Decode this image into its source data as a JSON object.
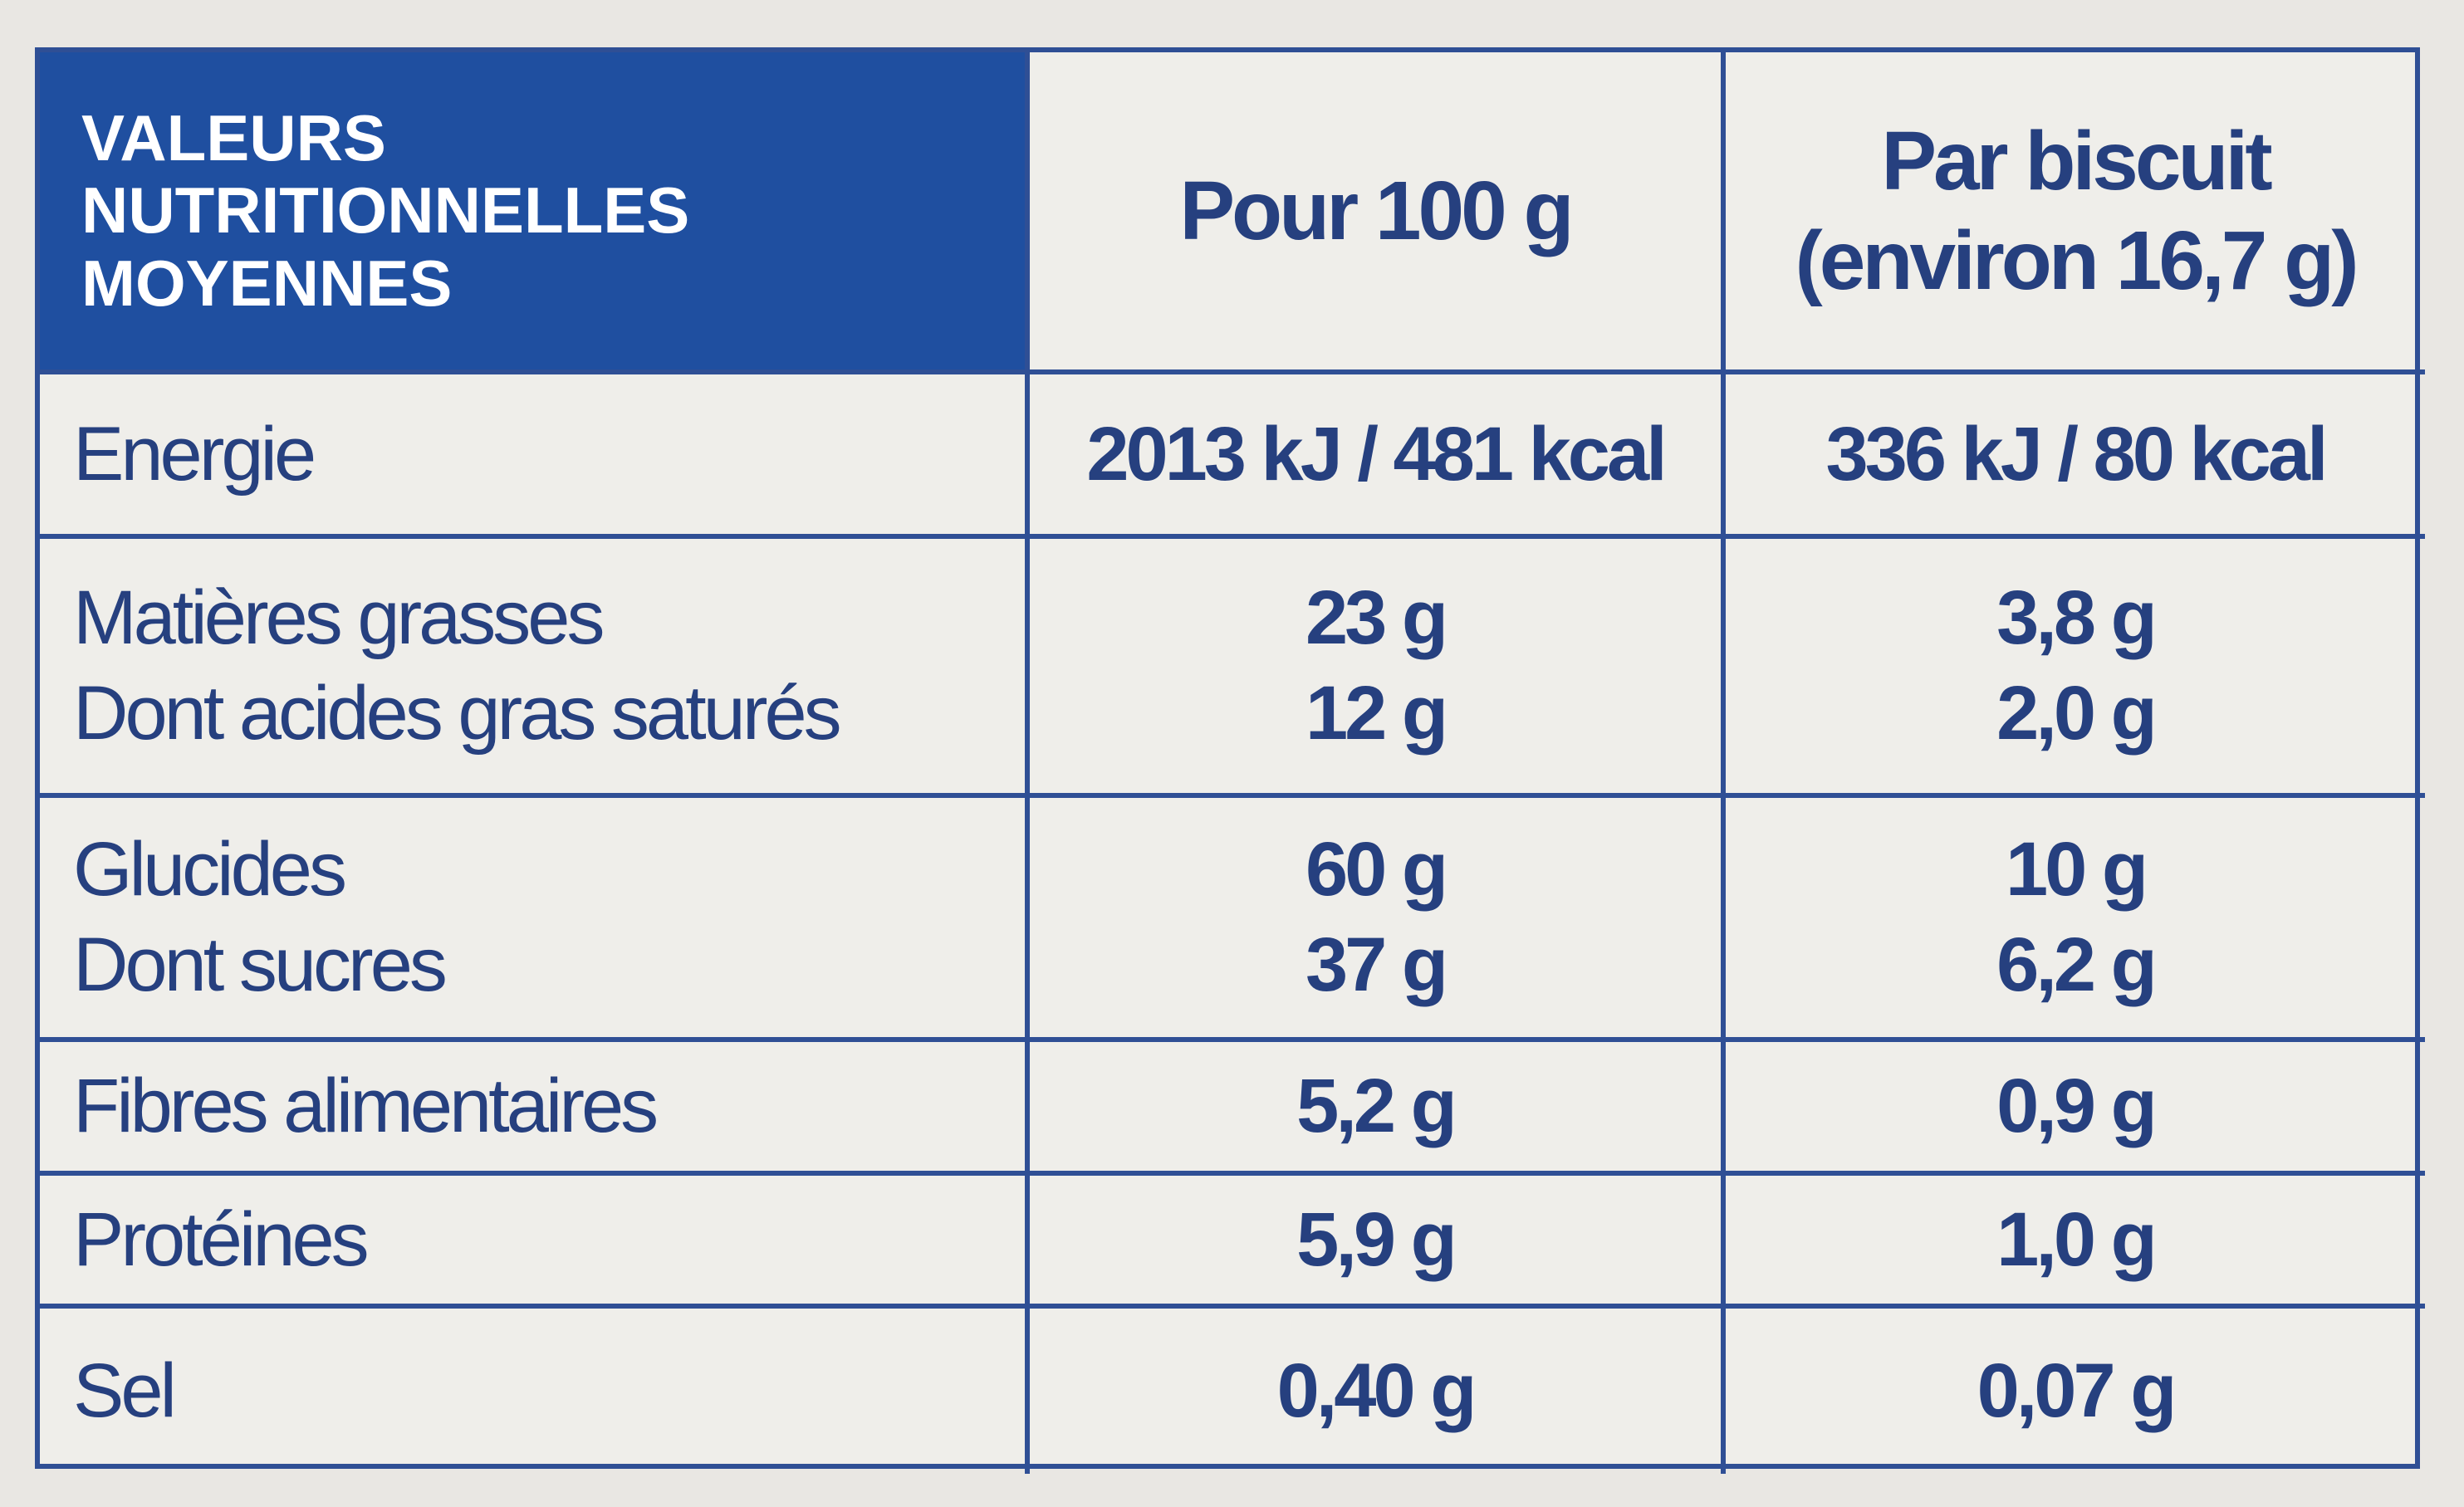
{
  "header": {
    "title_lines": [
      "VALEURS",
      "NUTRITIONNELLES",
      "MOYENNES"
    ],
    "col_100g": "Pour 100 g",
    "col_biscuit_lines": [
      "Par biscuit",
      "(environ 16,7 g)"
    ]
  },
  "rows": [
    [
      [
        "Energie",
        "2013 kJ / 481 kcal",
        "336 kJ / 80 kcal"
      ]
    ],
    [
      [
        "Matières grasses",
        "23 g",
        "3,8 g"
      ],
      [
        "Dont acides gras saturés",
        "12 g",
        "2,0 g"
      ]
    ],
    [
      [
        "Glucides",
        "60 g",
        "10 g"
      ],
      [
        "Dont sucres",
        "37 g",
        "6,2 g"
      ]
    ],
    [
      [
        "Fibres alimentaires",
        "5,2 g",
        "0,9 g"
      ]
    ],
    [
      [
        "Protéines",
        "5,9 g",
        "1,0 g"
      ]
    ],
    [
      [
        "Sel",
        "0,40 g",
        "0,07 g"
      ]
    ]
  ]
}
